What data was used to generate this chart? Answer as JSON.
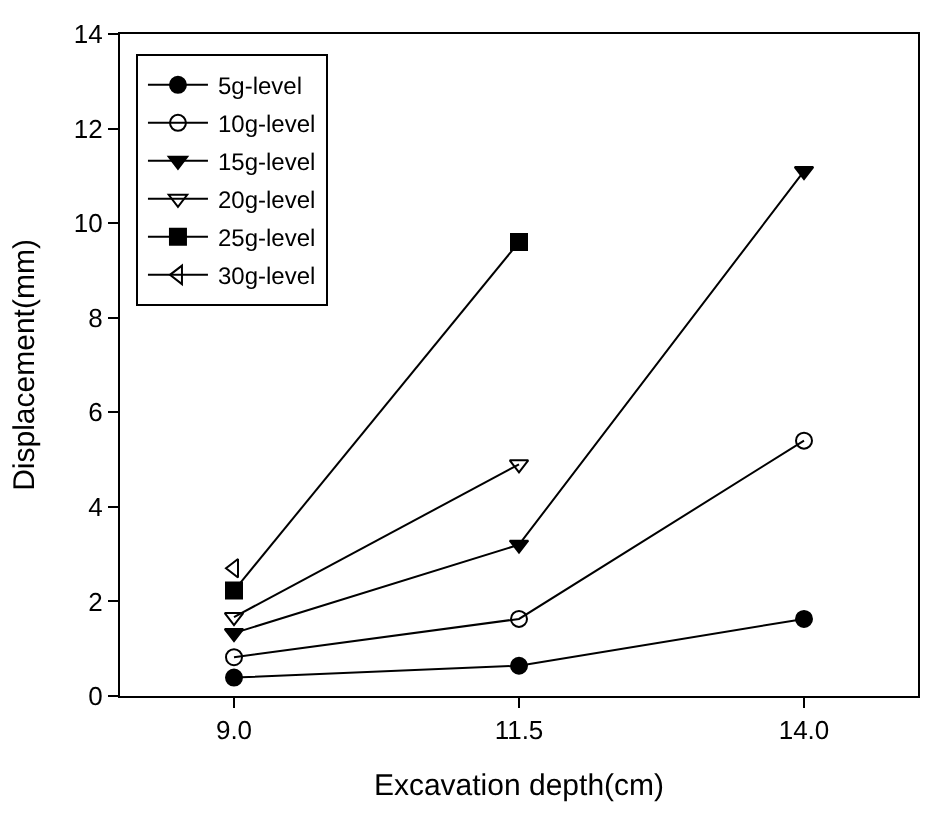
{
  "chart_data": {
    "type": "line",
    "xlabel": "Excavation depth(cm)",
    "ylabel": "Displacement(mm)",
    "xlim": [
      8,
      15
    ],
    "xticks": [
      {
        "value": 9,
        "label": "9.0"
      },
      11.5,
      {
        "value": 14,
        "label": "14.0"
      }
    ],
    "ylim": [
      0,
      14
    ],
    "yticks": [
      0,
      2,
      4,
      6,
      8,
      10,
      12,
      14
    ],
    "legend": "top left",
    "line_style": "solid",
    "series": [
      {
        "name": "5g-level",
        "color": "#000000",
        "marker": "circle",
        "x": [
          9,
          11.5,
          14
        ],
        "values": [
          0.39,
          0.64,
          1.63
        ]
      },
      {
        "name": "10g-level",
        "color": "#000000",
        "marker": "circle-open",
        "x": [
          9,
          11.5,
          14
        ],
        "values": [
          0.82,
          1.63,
          5.4
        ]
      },
      {
        "name": "15g-level",
        "color": "#000000",
        "marker": "triangle-down",
        "x": [
          9,
          11.5,
          14
        ],
        "values": [
          1.33,
          3.2,
          11.1
        ]
      },
      {
        "name": "20g-level",
        "color": "#000000",
        "marker": "triangle-down-open",
        "x": [
          9,
          11.5
        ],
        "values": [
          1.67,
          4.9
        ]
      },
      {
        "name": "25g-level",
        "color": "#000000",
        "marker": "square",
        "x": [
          9,
          11.5
        ],
        "values": [
          2.23,
          9.6
        ]
      },
      {
        "name": "30g-level",
        "color": "#000000",
        "marker": "triangle-left-open",
        "x": [
          9
        ],
        "values": [
          2.7
        ]
      }
    ]
  }
}
